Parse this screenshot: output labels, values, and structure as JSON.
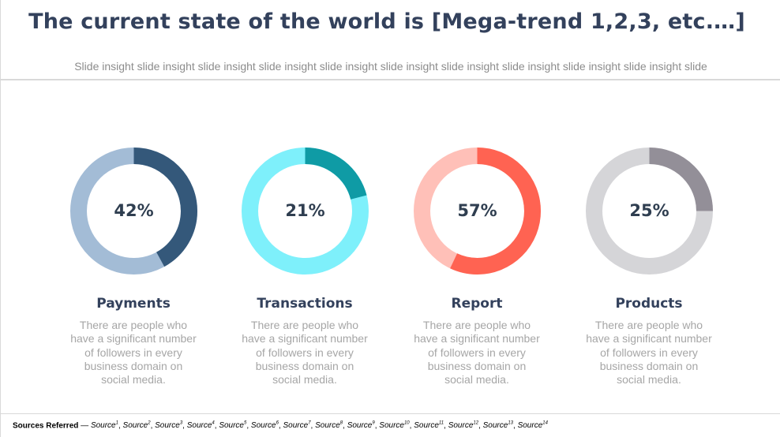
{
  "slide": {
    "title": "The current state of the world is [Mega-trend 1,2,3, etc.…]",
    "subtitle": "Slide insight slide insight slide insight slide insight slide insight slide insight slide insight slide insight slide insight slide insight slide"
  },
  "cards": [
    {
      "percent": 42,
      "percent_label": "42%",
      "label": "Payments",
      "description": "There are people who have a significant number of followers in every business domain on social media.",
      "accent_color": "#34587a",
      "track_color": "#a3bcd6"
    },
    {
      "percent": 21,
      "percent_label": "21%",
      "label": "Transactions",
      "description": "There are people who have a significant number of followers in every business domain on social media.",
      "accent_color": "#0f9ba5",
      "track_color": "#7ef0fb"
    },
    {
      "percent": 57,
      "percent_label": "57%",
      "label": "Report",
      "description": "There are people who have a significant number of followers in every business domain on social media.",
      "accent_color": "#ff6352",
      "track_color": "#ffc0b8"
    },
    {
      "percent": 25,
      "percent_label": "25%",
      "label": "Products",
      "description": "There are people who have a significant number of followers in every business domain on social media.",
      "accent_color": "#938f98",
      "track_color": "#d5d5d8"
    }
  ],
  "footer": {
    "heading": "Sources Referred",
    "separator": " — ",
    "sources": [
      {
        "name": "Source",
        "sup": "1"
      },
      {
        "name": "Source",
        "sup": "2"
      },
      {
        "name": "Source",
        "sup": "3"
      },
      {
        "name": "Source",
        "sup": "4"
      },
      {
        "name": "Source",
        "sup": "5"
      },
      {
        "name": "Source",
        "sup": "6"
      },
      {
        "name": "Source",
        "sup": "7"
      },
      {
        "name": "Source",
        "sup": "8"
      },
      {
        "name": "Source",
        "sup": "9"
      },
      {
        "name": "Source",
        "sup": "10"
      },
      {
        "name": "Source",
        "sup": "11"
      },
      {
        "name": "Source",
        "sup": "12"
      },
      {
        "name": "Source",
        "sup": "13"
      },
      {
        "name": "Source",
        "sup": "14"
      }
    ]
  }
}
